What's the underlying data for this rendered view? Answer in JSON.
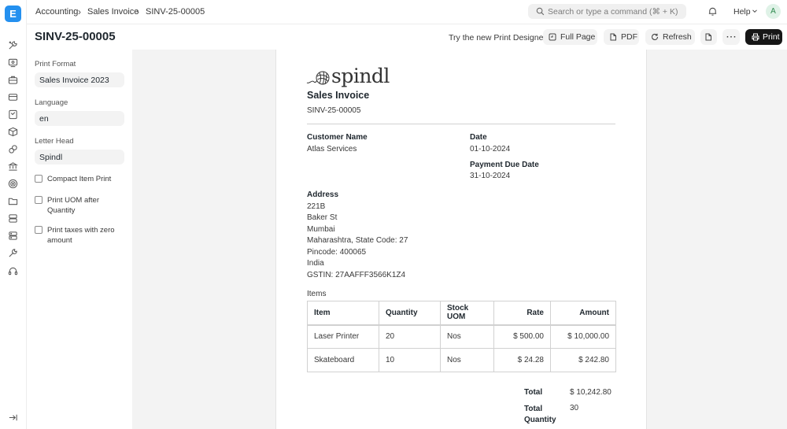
{
  "app": {
    "logo_letter": "E"
  },
  "breadcrumbs": [
    "Accounting",
    "Sales Invoice",
    "SINV-25-00005"
  ],
  "search": {
    "placeholder": "Search or type a command (⌘ + K)"
  },
  "help_label": "Help",
  "avatar_letter": "A",
  "page_title": "SINV-25-00005",
  "toolbar": {
    "designer_link": "Try the new Print Designer",
    "full_page": "Full Page",
    "pdf": "PDF",
    "refresh": "Refresh",
    "more": "···",
    "print": "Print"
  },
  "sidebar_icons": [
    "tools-icon",
    "desktop-icon",
    "briefcase-icon",
    "card-icon",
    "receipt-icon",
    "box-icon",
    "puzzle-icon",
    "bank-icon",
    "target-icon",
    "folder-icon",
    "database-icon",
    "server-icon",
    "wrench-icon",
    "headset-icon",
    "collapse-icon"
  ],
  "settings": {
    "print_format_label": "Print Format",
    "print_format_value": "Sales Invoice 2023",
    "language_label": "Language",
    "language_value": "en",
    "letter_head_label": "Letter Head",
    "letter_head_value": "Spindl",
    "checkboxes": [
      {
        "label": "Compact Item Print",
        "checked": false
      },
      {
        "label": "Print UOM after Quantity",
        "checked": false
      },
      {
        "label": "Print taxes with zero amount",
        "checked": false
      }
    ]
  },
  "invoice": {
    "brand": "spindl",
    "title": "Sales Invoice",
    "number": "SINV-25-00005",
    "customer_label": "Customer Name",
    "customer_value": "Atlas Services",
    "date_label": "Date",
    "date_value": "01-10-2024",
    "due_label": "Payment Due Date",
    "due_value": "31-10-2024",
    "address_label": "Address",
    "address_lines": [
      "221B",
      "Baker St",
      "Mumbai",
      "Maharashtra, State Code: 27",
      "Pincode: 400065",
      "India",
      "GSTIN: 27AAFFF3566K1Z4"
    ],
    "items_label": "Items",
    "columns": [
      "Item",
      "Quantity",
      "Stock UOM",
      "Rate",
      "Amount"
    ],
    "rows": [
      [
        "Laser Printer",
        "20",
        "Nos",
        "$ 500.00",
        "$ 10,000.00"
      ],
      [
        "Skateboard",
        "10",
        "Nos",
        "$ 24.28",
        "$ 242.80"
      ]
    ],
    "total_label": "Total",
    "total_value": "$ 10,242.80",
    "total_qty_label": "Total Quantity",
    "total_qty_value": "30"
  }
}
